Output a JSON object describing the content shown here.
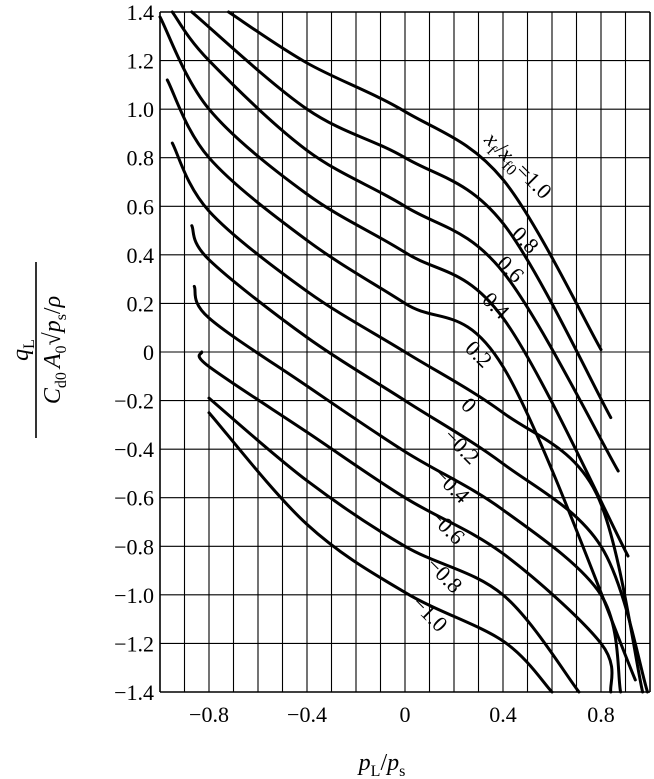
{
  "chart_data": {
    "type": "line",
    "xlim": [
      -1.0,
      1.0
    ],
    "ylim": [
      -1.4,
      1.4
    ],
    "grid": true,
    "x_ticks": [
      {
        "value": -0.8,
        "label": "−0.8"
      },
      {
        "value": -0.4,
        "label": "−0.4"
      },
      {
        "value": 0.0,
        "label": "0"
      },
      {
        "value": 0.4,
        "label": "0.4"
      },
      {
        "value": 0.8,
        "label": "0.8"
      }
    ],
    "y_ticks": [
      {
        "value": 1.4,
        "label": "1.4"
      },
      {
        "value": 1.2,
        "label": "1.2"
      },
      {
        "value": 1.0,
        "label": "1.0"
      },
      {
        "value": 0.8,
        "label": "0.8"
      },
      {
        "value": 0.6,
        "label": "0.6"
      },
      {
        "value": 0.4,
        "label": "0.4"
      },
      {
        "value": 0.2,
        "label": "0.2"
      },
      {
        "value": 0.0,
        "label": "0"
      },
      {
        "value": -0.2,
        "label": "−0.2"
      },
      {
        "value": -0.4,
        "label": "−0.4"
      },
      {
        "value": -0.6,
        "label": "−0.6"
      },
      {
        "value": -0.8,
        "label": "−0.8"
      },
      {
        "value": -1.0,
        "label": "−1.0"
      },
      {
        "value": -1.2,
        "label": "−1.2"
      },
      {
        "value": -1.4,
        "label": "−1.4"
      }
    ],
    "xlabel": {
      "var": "p",
      "var_sub": "L",
      "sep": "/",
      "den": "p",
      "den_sub": "s"
    },
    "ylabel": {
      "numerator": {
        "var": "q",
        "sub": "L"
      },
      "denominator": {
        "c": "C",
        "c_sub": "d0",
        "a": "A",
        "a_sub": "0",
        "root_arg": "p",
        "root_arg_sub": "s",
        "sep": "/",
        "rho": "ρ"
      }
    },
    "series_family_note_label": "x_f/x_f0",
    "series": [
      {
        "label": "x_f/x_f0=1.0",
        "label_text": "=1.0",
        "points": [
          [
            -0.72,
            1.4
          ],
          [
            -0.4,
            1.19
          ],
          [
            0.0,
            0.99
          ],
          [
            0.4,
            0.71
          ],
          [
            0.8,
            0.01
          ]
        ]
      },
      {
        "label": "0.8",
        "points": [
          [
            -0.87,
            1.4
          ],
          [
            -0.4,
            1.0
          ],
          [
            0.0,
            0.8
          ],
          [
            0.4,
            0.53
          ],
          [
            0.84,
            -0.27
          ]
        ]
      },
      {
        "label": "0.6",
        "points": [
          [
            -0.95,
            1.4
          ],
          [
            -0.8,
            1.2
          ],
          [
            -0.4,
            0.83
          ],
          [
            0.0,
            0.6
          ],
          [
            0.4,
            0.33
          ],
          [
            0.87,
            -0.49
          ]
        ]
      },
      {
        "label": "0.4",
        "points": [
          [
            -1.0,
            1.38
          ],
          [
            -0.8,
            1.0
          ],
          [
            -0.4,
            0.65
          ],
          [
            0.0,
            0.41
          ],
          [
            0.4,
            0.14
          ],
          [
            0.91,
            -0.84
          ]
        ]
      },
      {
        "label": "0.2",
        "points": [
          [
            -0.97,
            1.12
          ],
          [
            -0.8,
            0.8
          ],
          [
            -0.4,
            0.46
          ],
          [
            0.0,
            0.2
          ],
          [
            0.4,
            -0.06
          ],
          [
            0.94,
            -1.35
          ]
        ]
      },
      {
        "label": "0",
        "points": [
          [
            -0.95,
            0.86
          ],
          [
            -0.8,
            0.58
          ],
          [
            -0.4,
            0.25
          ],
          [
            0.0,
            0.0
          ],
          [
            0.4,
            -0.25
          ],
          [
            0.78,
            -0.58
          ],
          [
            0.97,
            -1.4
          ]
        ]
      },
      {
        "label": "−0.2",
        "points": [
          [
            -0.87,
            0.52
          ],
          [
            -0.8,
            0.38
          ],
          [
            -0.4,
            0.06
          ],
          [
            0.0,
            -0.2
          ],
          [
            0.4,
            -0.46
          ],
          [
            0.8,
            -0.8
          ],
          [
            0.99,
            -1.4
          ]
        ]
      },
      {
        "label": "−0.4",
        "points": [
          [
            -0.86,
            0.27
          ],
          [
            -0.8,
            0.14
          ],
          [
            -0.4,
            -0.14
          ],
          [
            0.0,
            -0.41
          ],
          [
            0.4,
            -0.65
          ],
          [
            0.8,
            -1.0
          ],
          [
            0.88,
            -1.4
          ]
        ]
      },
      {
        "label": "−0.6",
        "points": [
          [
            -0.83,
            0.0
          ],
          [
            -0.8,
            -0.06
          ],
          [
            -0.4,
            -0.33
          ],
          [
            0.0,
            -0.6
          ],
          [
            0.4,
            -0.83
          ],
          [
            0.8,
            -1.2
          ],
          [
            0.84,
            -1.4
          ]
        ]
      },
      {
        "label": "−0.8",
        "points": [
          [
            -0.8,
            -0.19
          ],
          [
            -0.4,
            -0.53
          ],
          [
            0.0,
            -0.8
          ],
          [
            0.4,
            -1.0
          ],
          [
            0.71,
            -1.4
          ]
        ]
      },
      {
        "label": "−1.0",
        "points": [
          [
            -0.8,
            -0.25
          ],
          [
            -0.4,
            -0.71
          ],
          [
            0.0,
            -0.99
          ],
          [
            0.4,
            -1.19
          ],
          [
            0.6,
            -1.4
          ]
        ]
      }
    ],
    "curve_labels": [
      {
        "text": "0.8",
        "x": 0.47,
        "y": 0.44
      },
      {
        "text": "0.6",
        "x": 0.41,
        "y": 0.32
      },
      {
        "text": "0.4",
        "x": 0.35,
        "y": 0.17
      },
      {
        "text": "0.2",
        "x": 0.28,
        "y": -0.03
      },
      {
        "text": "0",
        "x": 0.24,
        "y": -0.24
      },
      {
        "text": "−0.2",
        "x": 0.21,
        "y": -0.41
      },
      {
        "text": "−0.4",
        "x": 0.17,
        "y": -0.57
      },
      {
        "text": "−0.6",
        "x": 0.15,
        "y": -0.74
      },
      {
        "text": "−0.8",
        "x": 0.14,
        "y": -0.94
      },
      {
        "text": "−1.0",
        "x": 0.08,
        "y": -1.1
      }
    ],
    "family_label_pos": {
      "x": 0.32,
      "y": 0.87
    }
  }
}
